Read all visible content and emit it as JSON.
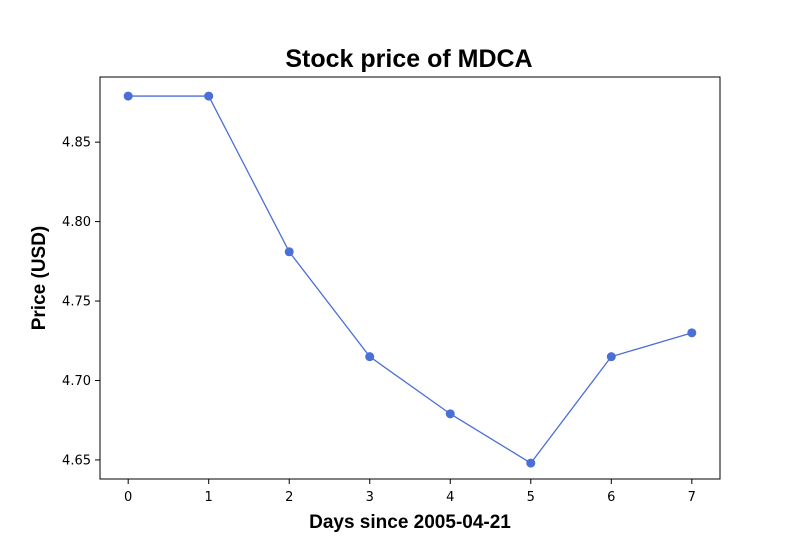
{
  "chart_data": {
    "type": "line",
    "title": "Stock price of MDCA",
    "xlabel": "Days since 2005-04-21",
    "ylabel": "Price (USD)",
    "x": [
      0,
      1,
      2,
      3,
      4,
      5,
      6,
      7
    ],
    "xticks": [
      "0",
      "1",
      "2",
      "3",
      "4",
      "5",
      "6",
      "7"
    ],
    "yticks": [
      "4.65",
      "4.70",
      "4.75",
      "4.80",
      "4.85"
    ],
    "ytick_values": [
      4.65,
      4.7,
      4.75,
      4.8,
      4.85
    ],
    "xlim": [
      -0.35,
      7.35
    ],
    "ylim": [
      4.638,
      4.891
    ],
    "grid": false,
    "series": [
      {
        "values": [
          4.879,
          4.879,
          4.781,
          4.715,
          4.679,
          4.648,
          4.715,
          4.73
        ],
        "color": "#4a6fd6",
        "marker": "circle"
      }
    ]
  }
}
